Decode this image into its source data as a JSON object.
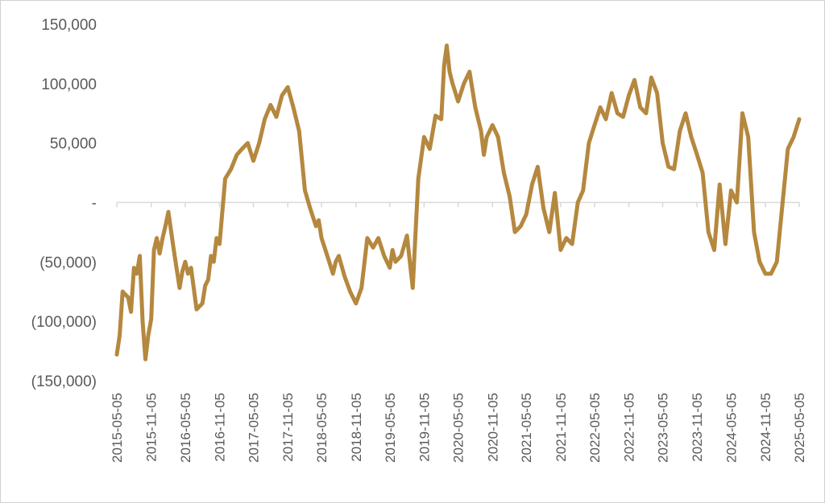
{
  "chart_data": {
    "type": "line",
    "title": "",
    "xlabel": "",
    "ylabel": "",
    "ylim": [
      -150000,
      150000
    ],
    "grid": false,
    "legend": "none",
    "line_color": "#B5883F",
    "y_ticks": [
      {
        "value": 150000,
        "label": "150,000"
      },
      {
        "value": 100000,
        "label": "100,000"
      },
      {
        "value": 50000,
        "label": "50,000"
      },
      {
        "value": 0,
        "label": "-"
      },
      {
        "value": -50000,
        "label": "(50,000)"
      },
      {
        "value": -100000,
        "label": "(100,000)"
      },
      {
        "value": -150000,
        "label": "(150,000)"
      }
    ],
    "x_ticks": [
      "2015-05-05",
      "2015-11-05",
      "2016-05-05",
      "2016-11-05",
      "2017-05-05",
      "2017-11-05",
      "2018-05-05",
      "2018-11-05",
      "2019-05-05",
      "2019-11-05",
      "2020-05-05",
      "2020-11-05",
      "2021-05-05",
      "2021-11-05",
      "2022-05-05",
      "2022-11-05",
      "2023-05-05",
      "2023-11-05",
      "2024-05-05",
      "2024-11-05",
      "2025-05-05"
    ],
    "series": [
      {
        "x": [
          "2015-05-05",
          "2015-05-20",
          "2015-06-05",
          "2015-07-05",
          "2015-07-20",
          "2015-08-05",
          "2015-08-20",
          "2015-09-05",
          "2015-09-20",
          "2015-10-05",
          "2015-10-20",
          "2015-11-05",
          "2015-11-20",
          "2015-12-05",
          "2015-12-20",
          "2016-01-05",
          "2016-01-20",
          "2016-02-05",
          "2016-03-05",
          "2016-04-05",
          "2016-04-20",
          "2016-05-05",
          "2016-05-20",
          "2016-06-05",
          "2016-07-05",
          "2016-08-05",
          "2016-08-20",
          "2016-09-05",
          "2016-09-20",
          "2016-10-05",
          "2016-10-20",
          "2016-11-05",
          "2016-12-05",
          "2017-01-05",
          "2017-02-05",
          "2017-03-05",
          "2017-04-05",
          "2017-05-05",
          "2017-06-05",
          "2017-07-05",
          "2017-08-05",
          "2017-09-05",
          "2017-10-05",
          "2017-11-05",
          "2017-12-05",
          "2018-01-05",
          "2018-02-05",
          "2018-03-05",
          "2018-04-05",
          "2018-04-20",
          "2018-05-05",
          "2018-06-05",
          "2018-07-05",
          "2018-07-20",
          "2018-08-05",
          "2018-09-05",
          "2018-10-05",
          "2018-11-05",
          "2018-12-05",
          "2019-01-05",
          "2019-02-05",
          "2019-03-05",
          "2019-04-05",
          "2019-05-05",
          "2019-05-20",
          "2019-06-05",
          "2019-07-05",
          "2019-08-05",
          "2019-09-05",
          "2019-10-05",
          "2019-11-05",
          "2019-12-05",
          "2020-01-05",
          "2020-02-05",
          "2020-02-20",
          "2020-03-05",
          "2020-03-20",
          "2020-04-05",
          "2020-05-05",
          "2020-06-05",
          "2020-07-05",
          "2020-08-05",
          "2020-09-05",
          "2020-09-20",
          "2020-10-05",
          "2020-11-05",
          "2020-12-05",
          "2021-01-05",
          "2021-02-05",
          "2021-03-05",
          "2021-04-05",
          "2021-05-05",
          "2021-06-05",
          "2021-07-05",
          "2021-08-05",
          "2021-09-05",
          "2021-10-05",
          "2021-11-05",
          "2021-12-05",
          "2022-01-05",
          "2022-02-05",
          "2022-03-05",
          "2022-04-05",
          "2022-05-05",
          "2022-06-05",
          "2022-07-05",
          "2022-08-05",
          "2022-09-05",
          "2022-10-05",
          "2022-11-05",
          "2022-12-05",
          "2023-01-05",
          "2023-02-05",
          "2023-03-05",
          "2023-04-05",
          "2023-05-05",
          "2023-06-05",
          "2023-07-05",
          "2023-08-05",
          "2023-09-05",
          "2023-10-05",
          "2023-11-05",
          "2023-12-05",
          "2024-01-05",
          "2024-02-05",
          "2024-03-05",
          "2024-04-05",
          "2024-05-05",
          "2024-06-05",
          "2024-07-05",
          "2024-08-05",
          "2024-09-05",
          "2024-10-05",
          "2024-11-05",
          "2024-12-05",
          "2025-01-05",
          "2025-02-05",
          "2025-03-05",
          "2025-04-05",
          "2025-05-05"
        ],
        "values": [
          -128000,
          -112000,
          -75000,
          -80000,
          -92000,
          -55000,
          -60000,
          -45000,
          -100000,
          -132000,
          -112000,
          -98000,
          -40000,
          -30000,
          -43000,
          -30000,
          -20000,
          -8000,
          -40000,
          -72000,
          -58000,
          -50000,
          -60000,
          -55000,
          -90000,
          -85000,
          -70000,
          -65000,
          -45000,
          -50000,
          -30000,
          -35000,
          20000,
          28000,
          40000,
          45000,
          50000,
          35000,
          50000,
          70000,
          82000,
          72000,
          90000,
          97000,
          80000,
          60000,
          10000,
          -5000,
          -20000,
          -15000,
          -30000,
          -45000,
          -60000,
          -50000,
          -45000,
          -62000,
          -75000,
          -85000,
          -72000,
          -30000,
          -38000,
          -30000,
          -45000,
          -55000,
          -40000,
          -50000,
          -45000,
          -28000,
          -72000,
          20000,
          55000,
          45000,
          73000,
          70000,
          115000,
          132000,
          110000,
          100000,
          85000,
          100000,
          110000,
          80000,
          60000,
          40000,
          55000,
          65000,
          55000,
          25000,
          5000,
          -25000,
          -20000,
          -10000,
          15000,
          30000,
          -5000,
          -25000,
          8000,
          -40000,
          -30000,
          -35000,
          0,
          10000,
          50000,
          65000,
          80000,
          70000,
          92000,
          75000,
          72000,
          90000,
          103000,
          80000,
          75000,
          105000,
          92000,
          50000,
          30000,
          28000,
          60000,
          75000,
          55000,
          40000,
          25000,
          -25000,
          -40000,
          15000,
          -35000,
          10000,
          0,
          75000,
          55000,
          -25000,
          -50000,
          -60000,
          -60000,
          -50000,
          0,
          45000,
          55000,
          70000
        ]
      }
    ]
  }
}
